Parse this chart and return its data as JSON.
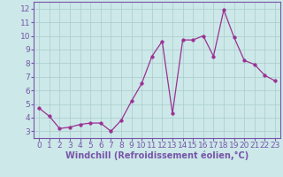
{
  "x": [
    0,
    1,
    2,
    3,
    4,
    5,
    6,
    7,
    8,
    9,
    10,
    11,
    12,
    13,
    14,
    15,
    16,
    17,
    18,
    19,
    20,
    21,
    22,
    23
  ],
  "y": [
    4.7,
    4.1,
    3.2,
    3.3,
    3.5,
    3.6,
    3.6,
    3.0,
    3.8,
    5.2,
    6.5,
    8.5,
    9.6,
    4.3,
    9.7,
    9.7,
    10.0,
    8.5,
    11.9,
    9.9,
    8.2,
    7.9,
    7.1,
    6.7
  ],
  "line_color": "#9b3093",
  "marker_color": "#9b3093",
  "bg_color": "#cce8e8",
  "grid_color": "#aacccc",
  "axis_color": "#7755aa",
  "xlabel": "Windchill (Refroidissement éolien,°C)",
  "xlim": [
    -0.5,
    23.5
  ],
  "ylim": [
    2.5,
    12.5
  ],
  "yticks": [
    3,
    4,
    5,
    6,
    7,
    8,
    9,
    10,
    11,
    12
  ],
  "xticks": [
    0,
    1,
    2,
    3,
    4,
    5,
    6,
    7,
    8,
    9,
    10,
    11,
    12,
    13,
    14,
    15,
    16,
    17,
    18,
    19,
    20,
    21,
    22,
    23
  ],
  "tick_fontsize": 6.5,
  "xlabel_fontsize": 7.0,
  "marker_size": 2.5,
  "line_width": 0.9
}
